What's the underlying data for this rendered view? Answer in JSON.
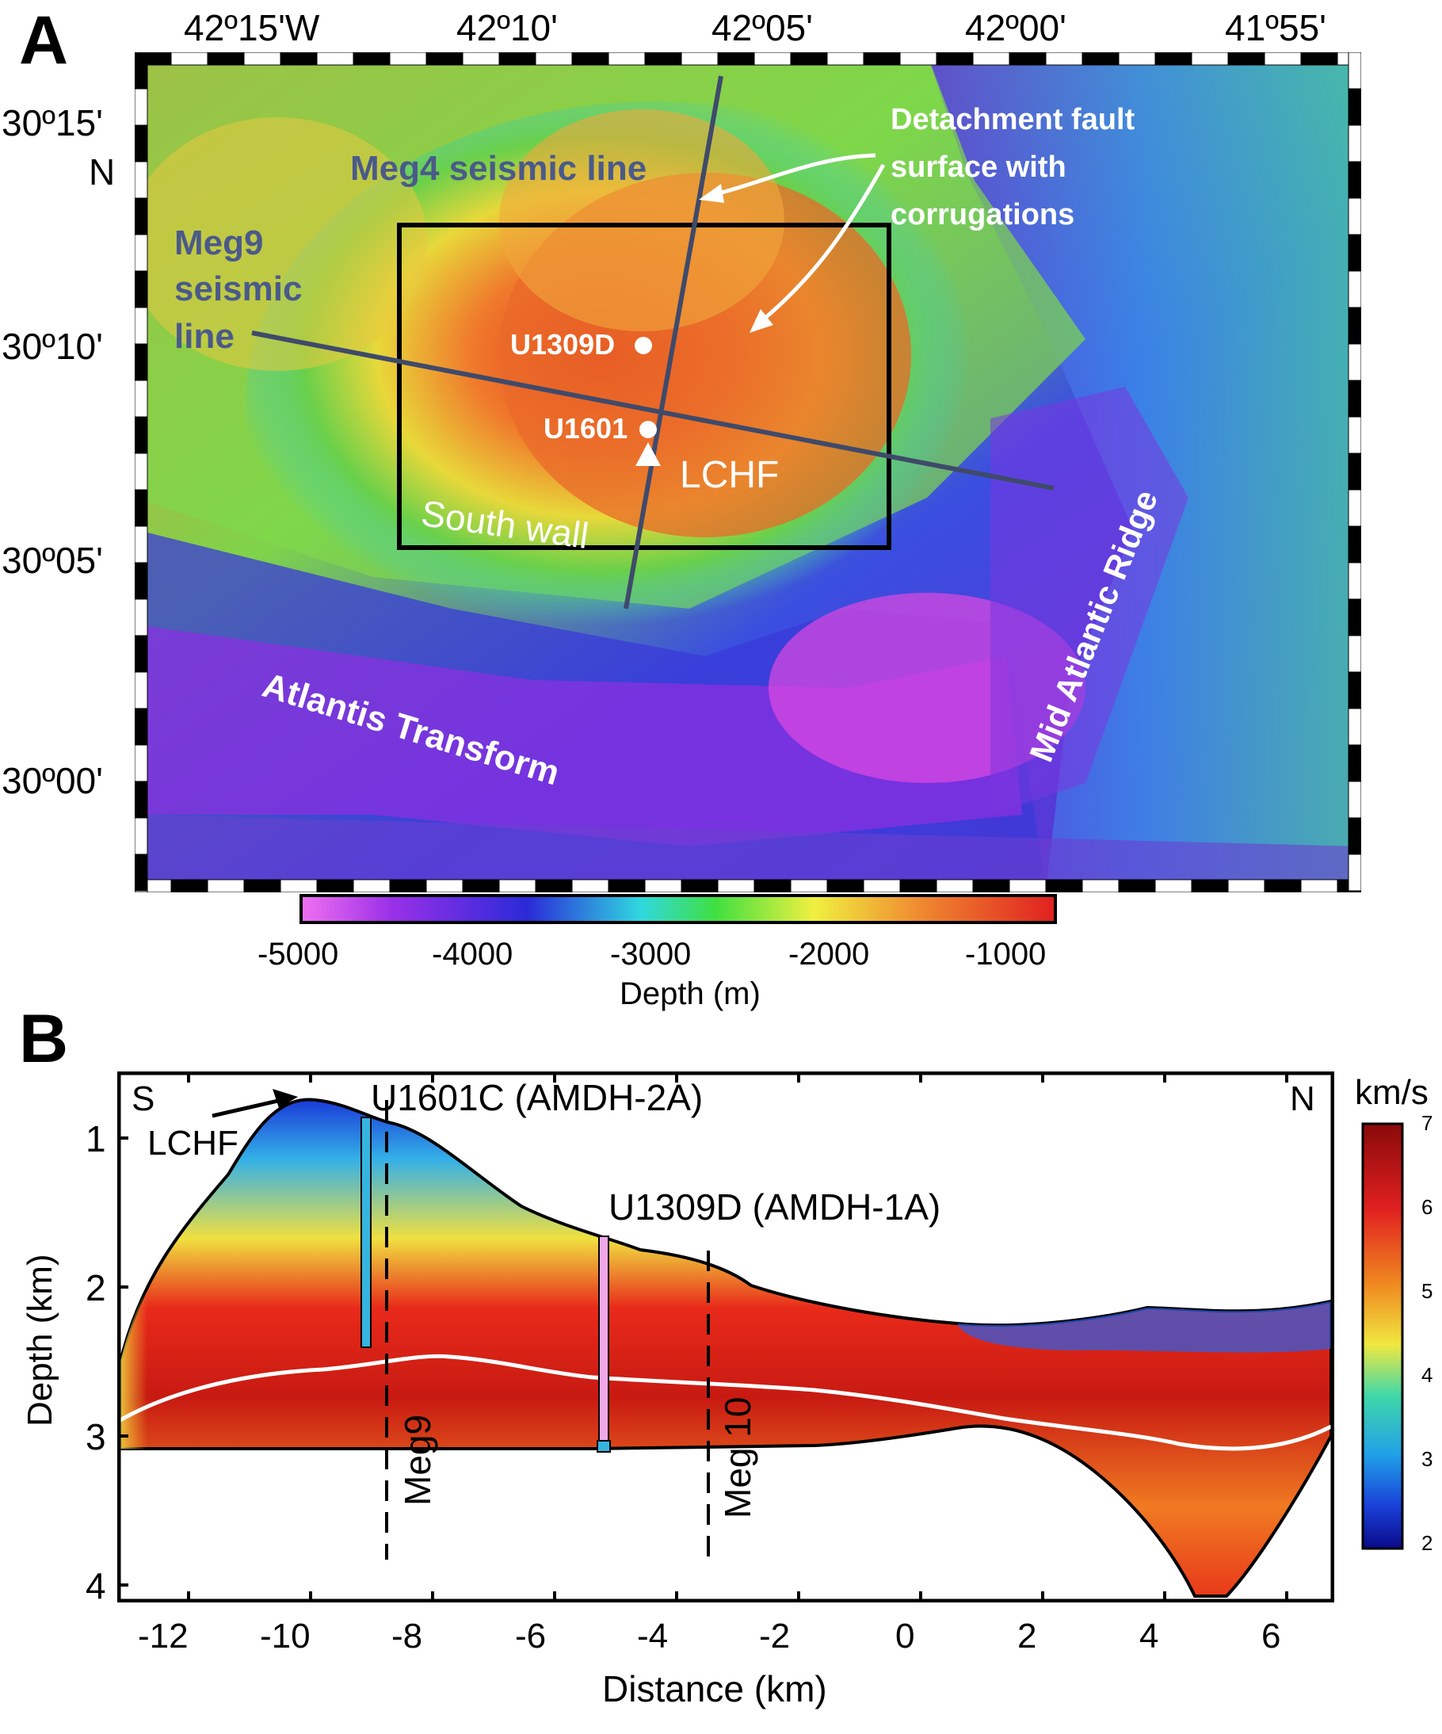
{
  "panel_a": {
    "letter": "A",
    "lon_labels": [
      "42º15'W",
      "42º10'",
      "42º05'",
      "42º00'",
      "41º55'"
    ],
    "lat_labels": [
      "30º15'",
      "N",
      "30º10'",
      "30º05'",
      "30º00'"
    ],
    "annotations": {
      "meg4": "Meg4 seismic line",
      "meg9_l1": "Meg9",
      "meg9_l2": "seismic",
      "meg9_l3": "line",
      "detach_l1": "Detachment fault",
      "detach_l2": "surface with",
      "detach_l3": "corrugations",
      "u1309d": "U1309D",
      "u1601": "U1601",
      "lchf": "LCHF",
      "south_wall": "South wall",
      "mar": "Mid Atlantic Ridge",
      "transform": "Atlantis Transform"
    },
    "colorbar": {
      "ticks": [
        "-5000",
        "-4000",
        "-3000",
        "-2000",
        "-1000"
      ],
      "label": "Depth (m)"
    }
  },
  "panel_b": {
    "letter": "B",
    "s_label": "S",
    "n_label": "N",
    "lchf": "LCHF",
    "u1601c": "U1601C (AMDH-2A)",
    "u1309d": "U1309D (AMDH-1A)",
    "meg9": "Meg9",
    "meg10": "Meg 10",
    "colorbar_unit": "km/s",
    "colorbar_ticks": [
      "7",
      "6",
      "5",
      "4",
      "3",
      "2"
    ],
    "y_ticks": [
      "1",
      "2",
      "3",
      "4"
    ],
    "x_ticks": [
      "-12",
      "-10",
      "-8",
      "-6",
      "-4",
      "-2",
      "0",
      "2",
      "4",
      "6"
    ],
    "ylabel": "Depth (km)",
    "xlabel": "Distance (km)"
  }
}
